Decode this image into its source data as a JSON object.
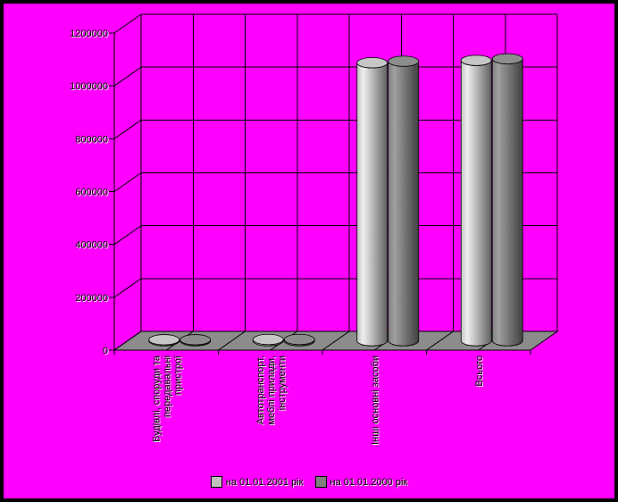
{
  "frame": {
    "border_color": "#000000",
    "background_color": "#FF00FF"
  },
  "chart_data": {
    "type": "bar",
    "style": "3d-cylinder",
    "title": "",
    "xlabel": "",
    "ylabel": "",
    "categories": [
      {
        "label": "Будівлі, споруди та передавальні пристрої",
        "lines": [
          "Будівлі, споруди та",
          "передавальні",
          "пристрої"
        ]
      },
      {
        "label": "Автотранспорт, меблі прилади, інструменти",
        "lines": [
          "Автотранспорт,",
          "меблі прилади,",
          "інструменти"
        ]
      },
      {
        "label": "Інші основні засоби",
        "lines": [
          "Інші основні засоби"
        ]
      },
      {
        "label": "Всього",
        "lines": [
          "Всього"
        ]
      }
    ],
    "series": [
      {
        "name": "на 01.01.2001 рік",
        "color": "#C0C0C0",
        "values": [
          4000,
          5000,
          1052000,
          1061000
        ]
      },
      {
        "name": "на 01.01.2000 рік",
        "color": "#808080",
        "values": [
          4000,
          5000,
          1058000,
          1067000
        ]
      }
    ],
    "ylim": [
      0,
      1200000
    ],
    "ytick_interval": 200000,
    "ytick_labels": [
      "0",
      "200000",
      "400000",
      "600000",
      "800000",
      "1000000",
      "1200000"
    ],
    "grid": true,
    "legend_position": "bottom",
    "background_color": "#FF00FF",
    "wall_color": "#FF00FF",
    "floor_color": "#8C8C8C",
    "axis_color": "#000000"
  }
}
